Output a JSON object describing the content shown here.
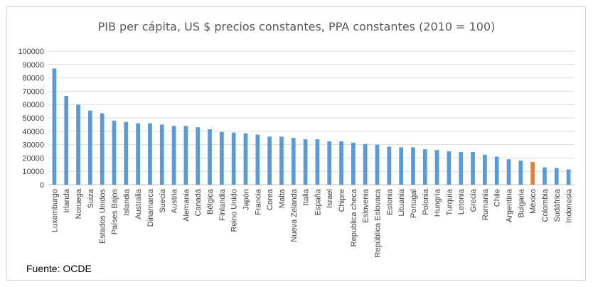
{
  "chart_data": {
    "type": "bar",
    "title": "PIB per cápita, US $ precios constantes, PPA constantes (2010 = 100)",
    "xlabel": "",
    "ylabel": "",
    "ylim": [
      0,
      100000
    ],
    "yticks": [
      0,
      10000,
      20000,
      30000,
      40000,
      50000,
      60000,
      70000,
      80000,
      90000,
      100000
    ],
    "grid": "horizontal",
    "legend": "none",
    "colors": {
      "default": "#5b9bd5",
      "highlight": "#ed7d31",
      "grid": "#d9d9d9",
      "axis": "#bfbfbf"
    },
    "highlight_category": "México",
    "categories": [
      "Luxemburgo",
      "Irlanda",
      "Noruega",
      "Suiza",
      "Estados Unidos",
      "Países Bajos",
      "Islandia",
      "Australia",
      "Dinamarca",
      "Suecia",
      "Austria",
      "Alemania",
      "Canadá",
      "Bélgica",
      "Finlandia",
      "Reino Unido",
      "Japón",
      "Francia",
      "Corea",
      "Malta",
      "Nueva Zelanda",
      "Italia",
      "España",
      "Israel",
      "Chipre",
      "Republica checa",
      "Eslovenia",
      "República Eslovaca",
      "Estonia",
      "Lituania",
      "Portugal",
      "Polonia",
      "Hungría",
      "Turquía",
      "Letonia",
      "Grecia",
      "Rumania",
      "Chile",
      "Argentina",
      "Bulgaria",
      "México",
      "Colombia",
      "Sudáfrica",
      "Indonesia"
    ],
    "values": [
      87000,
      66500,
      60000,
      55500,
      53500,
      48000,
      47000,
      46000,
      46000,
      45000,
      44000,
      44000,
      43000,
      41500,
      39500,
      39000,
      38500,
      37500,
      36000,
      36000,
      35000,
      34000,
      34000,
      32500,
      32500,
      31500,
      30500,
      30000,
      28500,
      28000,
      28000,
      26500,
      26000,
      25000,
      24500,
      24500,
      22500,
      21000,
      19000,
      18000,
      17000,
      13000,
      12500,
      11500
    ]
  },
  "source": "Fuente: OCDE"
}
